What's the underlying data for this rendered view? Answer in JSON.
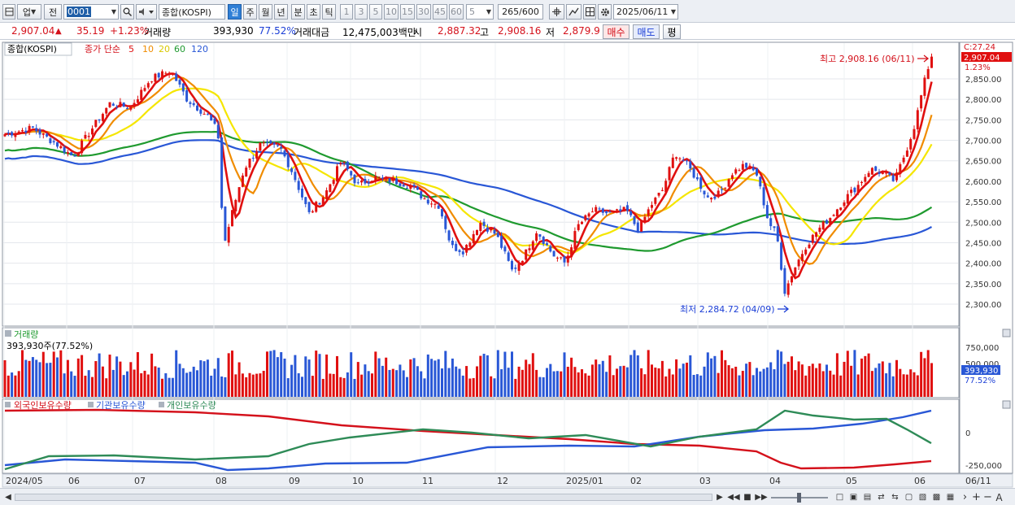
{
  "toolbar": {
    "market_select": "업",
    "prev_label": "전",
    "code_value": "0001",
    "index_name": "종합(KOSPI)",
    "periods": [
      "일",
      "주",
      "월",
      "년",
      "분",
      "초",
      "틱"
    ],
    "active_period": "일",
    "intervals": [
      "1",
      "3",
      "5",
      "10",
      "15",
      "30",
      "45",
      "60"
    ],
    "interval_value": "5",
    "count_value": "265",
    "count_total": "/600",
    "date_value": "2025/06/11"
  },
  "quote": {
    "price": "2,907.04",
    "change": "35.19",
    "change_pct": "+1.23%",
    "volume_label": "거래량",
    "volume": "393,930",
    "volume_ratio": "77.52%",
    "amount_label": "거래대금",
    "amount": "12,475,003백만",
    "open_label": "시",
    "open": "2,887.32",
    "high_label": "고",
    "high": "2,908.16",
    "low_label": "저",
    "low": "2,879.9",
    "buy_label": "매수",
    "sell_label": "매도",
    "avg_label": "평"
  },
  "price_panel": {
    "legend_name": "종합(KOSPI)",
    "ma_prefix": "종가 단순",
    "ma_periods": [
      "5",
      "10",
      "20",
      "60",
      "120"
    ],
    "ma_colors": [
      "#e01010",
      "#f08c00",
      "#f5e600",
      "#1f9a2f",
      "#2957d6"
    ],
    "axis_ticks": [
      "2,850.00",
      "2,800.00",
      "2,750.00",
      "2,700.00",
      "2,650.00",
      "2,600.00",
      "2,550.00",
      "2,500.00",
      "2,450.00",
      "2,400.00",
      "2,350.00",
      "2,300.00"
    ],
    "cur_prefix": "C:27.24",
    "cur_price": "2,907.04",
    "cur_pct": "1.23%",
    "high_note": "최고 2,908.16 (06/11)",
    "low_note": "최저 2,284.72 (04/09)"
  },
  "volume_panel": {
    "title": "거래량",
    "readout": "393,930주(77.52%)",
    "axis_ticks": [
      "750,000",
      "500,000"
    ],
    "cur_value": "393,930",
    "cur_pct": "77.52%"
  },
  "holdings_panel": {
    "legends": [
      "외국인보유수량",
      "기관보유수량",
      "개인보유수량"
    ],
    "legend_colors": [
      "#d4111b",
      "#2957d6",
      "#2e8b57"
    ],
    "axis_ticks": [
      "0",
      "-250,000"
    ]
  },
  "x_axis": {
    "labels": [
      "2024/05",
      "06",
      "07",
      "08",
      "09",
      "10",
      "11",
      "12",
      "2025/01",
      "02",
      "03",
      "04",
      "05",
      "06"
    ],
    "last_label": "06/11"
  },
  "colors": {
    "up": "#e01010",
    "down": "#2957d6",
    "selected": "#2f7fd6"
  }
}
